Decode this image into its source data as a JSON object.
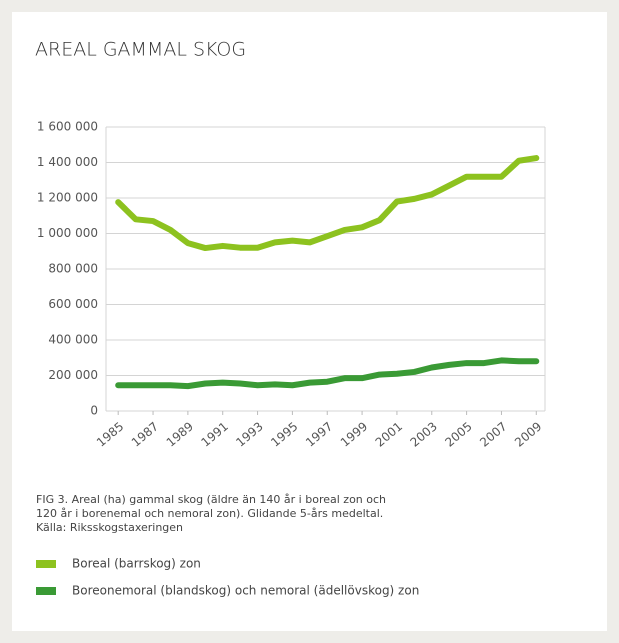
{
  "chart_data": {
    "type": "line",
    "title": "AREAL GAMMAL SKOG",
    "caption": [
      "FIG 3. Areal  (ha) gammal skog (äldre än 140 år i boreal zon och",
      "120 år i borenemal och nemoral zon). Glidande 5-års medeltal.",
      "Källa: Riksskogstaxeringen"
    ],
    "x": [
      1985,
      1986,
      1987,
      1988,
      1989,
      1990,
      1991,
      1992,
      1993,
      1994,
      1995,
      1996,
      1997,
      1998,
      1999,
      2000,
      2001,
      2002,
      2003,
      2004,
      2005,
      2006,
      2007,
      2008,
      2009
    ],
    "xlim": [
      1984.3,
      2009.5
    ],
    "xticks": [
      1985,
      1987,
      1989,
      1991,
      1993,
      1995,
      1997,
      1999,
      2001,
      2003,
      2005,
      2007,
      2009
    ],
    "ylim": [
      0,
      1600000
    ],
    "yticks": [
      0,
      {
        "value": 200000,
        "label": "200 000"
      },
      {
        "value": 400000,
        "label": "400 000"
      },
      {
        "value": 600000,
        "label": "600 000"
      },
      {
        "value": 800000,
        "label": "800 000"
      },
      {
        "value": 1000000,
        "label": "1 000 000"
      },
      {
        "value": 1200000,
        "label": "1 200 000"
      },
      {
        "value": 1400000,
        "label": "1 400 000"
      },
      {
        "value": 1600000,
        "label": "1 600 000"
      }
    ],
    "grid": true,
    "series": [
      {
        "name": "Boreal (barrskog) zon",
        "color": "#8dc21f",
        "values": [
          1177000,
          1080000,
          1070000,
          1020000,
          946000,
          918000,
          930000,
          920000,
          920000,
          950000,
          960000,
          950000,
          985000,
          1020000,
          1035000,
          1075000,
          1180000,
          1195000,
          1220000,
          1270000,
          1320000,
          1320000,
          1320000,
          1410000,
          1425000
        ]
      },
      {
        "name": "Boreonemoral (blandskog) och nemoral (ädellövskog) zon",
        "color": "#3a9a35",
        "values": [
          145000,
          145000,
          145000,
          145000,
          140000,
          155000,
          160000,
          155000,
          145000,
          150000,
          145000,
          160000,
          165000,
          185000,
          185000,
          205000,
          210000,
          220000,
          245000,
          260000,
          270000,
          270000,
          285000,
          280000,
          280000
        ]
      }
    ]
  }
}
